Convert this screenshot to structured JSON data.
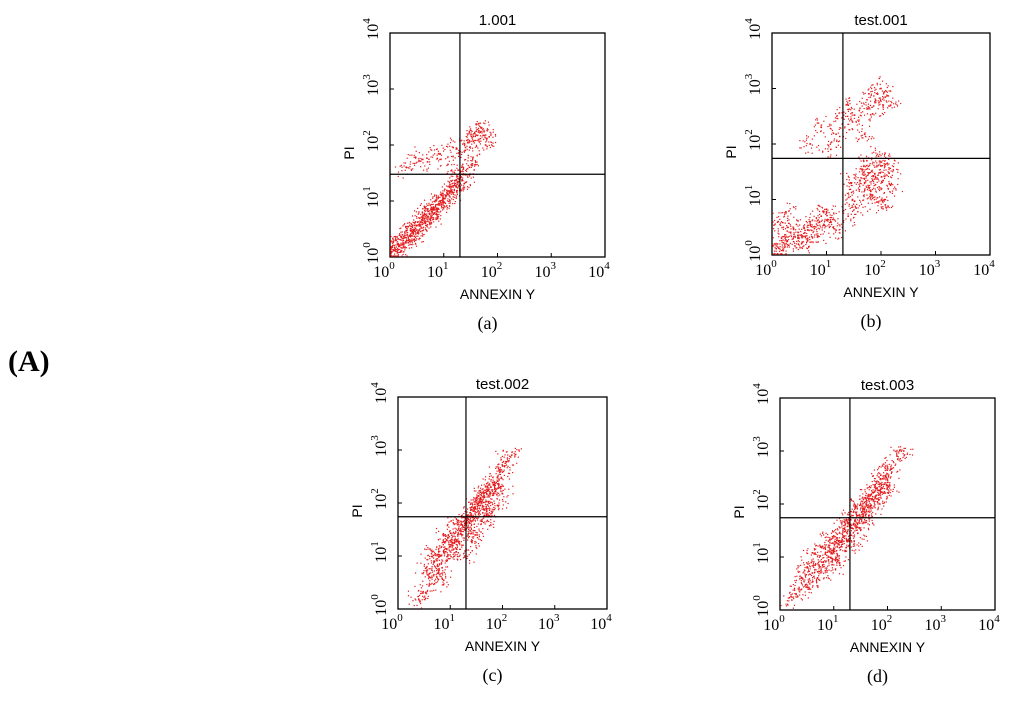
{
  "figure_label": "(A)",
  "colors": {
    "points": "#e41a1c",
    "frame": "#000000",
    "background": "#ffffff"
  },
  "chart_data": [
    {
      "type": "scatter",
      "title": "1.001",
      "caption": "(a)",
      "xlabel": "ANNEXIN Y",
      "ylabel": "PI",
      "x_scale": "log",
      "y_scale": "log",
      "xlim": [
        1,
        10000
      ],
      "ylim": [
        1,
        10000
      ],
      "tick_labels": [
        "10^0",
        "10^1",
        "10^2",
        "10^3",
        "10^4"
      ],
      "quadrant_gate": {
        "x": 20,
        "y": 30
      },
      "grid": false,
      "legend": "none",
      "series": [
        {
          "values": [
            [
              1.2,
              1.3
            ],
            [
              1.5,
              1.6
            ],
            [
              1.8,
              1.7
            ],
            [
              2.0,
              2.2
            ],
            [
              2.5,
              2.4
            ],
            [
              3.0,
              3.2
            ],
            [
              3.5,
              3.6
            ],
            [
              4.0,
              4.5
            ],
            [
              5.0,
              5.2
            ],
            [
              6.0,
              6.5
            ],
            [
              7.0,
              7.8
            ],
            [
              8.0,
              9.0
            ],
            [
              10,
              11
            ],
            [
              12,
              13
            ],
            [
              14,
              15
            ],
            [
              16,
              19
            ],
            [
              18,
              22
            ],
            [
              20,
              25
            ],
            [
              25,
              30
            ],
            [
              30,
              40
            ],
            [
              1.1,
              1.5
            ],
            [
              1.4,
              1.2
            ],
            [
              2.2,
              1.8
            ],
            [
              2.8,
              3.0
            ],
            [
              3.3,
              2.8
            ],
            [
              4.5,
              4.0
            ],
            [
              5.5,
              6.0
            ],
            [
              6.5,
              5.8
            ],
            [
              9.0,
              8.5
            ],
            [
              11,
              12
            ],
            [
              1.3,
              2.0
            ],
            [
              1.7,
              2.5
            ],
            [
              2.4,
              3.0
            ],
            [
              3.8,
              4.2
            ],
            [
              4.2,
              5.5
            ],
            [
              6.0,
              7.0
            ],
            [
              8.5,
              10
            ],
            [
              13,
              14
            ],
            [
              17,
              18
            ],
            [
              22,
              24
            ],
            [
              2.0,
              40
            ],
            [
              3.0,
              60
            ],
            [
              5.0,
              50
            ],
            [
              8.0,
              70
            ],
            [
              12,
              45
            ],
            [
              15,
              90
            ],
            [
              25,
              80
            ],
            [
              30,
              120
            ],
            [
              40,
              150
            ],
            [
              50,
              200
            ],
            [
              60,
              100
            ],
            [
              35,
              60
            ],
            [
              45,
              180
            ],
            [
              28,
              110
            ],
            [
              70,
              140
            ]
          ]
        }
      ]
    },
    {
      "type": "scatter",
      "title": "test.001",
      "caption": "(b)",
      "xlabel": "ANNEXIN Y",
      "ylabel": "PI",
      "x_scale": "log",
      "y_scale": "log",
      "xlim": [
        1,
        10000
      ],
      "ylim": [
        1,
        10000
      ],
      "tick_labels": [
        "10^0",
        "10^1",
        "10^2",
        "10^3",
        "10^4"
      ],
      "quadrant_gate": {
        "x": 20,
        "y": 55
      },
      "grid": false,
      "legend": "none",
      "series": [
        {
          "values": [
            [
              1.2,
              1.3
            ],
            [
              1.5,
              2.0
            ],
            [
              2.0,
              1.5
            ],
            [
              2.5,
              3.0
            ],
            [
              3.0,
              2.0
            ],
            [
              4.0,
              2.5
            ],
            [
              5.0,
              4.0
            ],
            [
              6.0,
              3.0
            ],
            [
              8.0,
              5.0
            ],
            [
              10,
              6.0
            ],
            [
              1.3,
              4.0
            ],
            [
              1.8,
              6.0
            ],
            [
              2.2,
              2.5
            ],
            [
              3.5,
              1.6
            ],
            [
              4.5,
              1.8
            ],
            [
              7.0,
              2.2
            ],
            [
              9.0,
              3.5
            ],
            [
              12,
              4.0
            ],
            [
              15,
              2.8
            ],
            [
              1.6,
              1.2
            ],
            [
              25,
              5.0
            ],
            [
              30,
              10
            ],
            [
              40,
              15
            ],
            [
              50,
              20
            ],
            [
              60,
              30
            ],
            [
              70,
              12
            ],
            [
              80,
              25
            ],
            [
              100,
              40
            ],
            [
              120,
              8.0
            ],
            [
              150,
              18
            ],
            [
              35,
              7.0
            ],
            [
              45,
              35
            ],
            [
              55,
              50
            ],
            [
              90,
              60
            ],
            [
              110,
              22
            ],
            [
              130,
              45
            ],
            [
              65,
              14
            ],
            [
              85,
              9.0
            ],
            [
              140,
              30
            ],
            [
              28,
              20
            ],
            [
              5.0,
              100
            ],
            [
              8.0,
              200
            ],
            [
              15,
              150
            ],
            [
              20,
              300
            ],
            [
              25,
              500
            ],
            [
              40,
              400
            ],
            [
              60,
              800
            ],
            [
              80,
              600
            ],
            [
              100,
              1000
            ],
            [
              150,
              500
            ],
            [
              30,
              250
            ],
            [
              50,
              150
            ],
            [
              70,
              350
            ],
            [
              120,
              700
            ],
            [
              12,
              80
            ]
          ]
        }
      ]
    },
    {
      "type": "scatter",
      "title": "test.002",
      "caption": "(c)",
      "xlabel": "ANNEXIN Y",
      "ylabel": "PI",
      "x_scale": "log",
      "y_scale": "log",
      "xlim": [
        1,
        10000
      ],
      "ylim": [
        1,
        10000
      ],
      "tick_labels": [
        "10^0",
        "10^1",
        "10^2",
        "10^3",
        "10^4"
      ],
      "quadrant_gate": {
        "x": 20,
        "y": 55
      },
      "grid": false,
      "legend": "none",
      "series": [
        {
          "values": [
            [
              3.0,
              2.0
            ],
            [
              4.0,
              4.0
            ],
            [
              5.0,
              8.0
            ],
            [
              6.0,
              5.0
            ],
            [
              8.0,
              12
            ],
            [
              10,
              15
            ],
            [
              12,
              20
            ],
            [
              15,
              30
            ],
            [
              20,
              40
            ],
            [
              25,
              60
            ],
            [
              30,
              80
            ],
            [
              40,
              100
            ],
            [
              50,
              150
            ],
            [
              60,
              200
            ],
            [
              80,
              300
            ],
            [
              100,
              500
            ],
            [
              5.0,
              3.0
            ],
            [
              7.0,
              6.0
            ],
            [
              9.0,
              10
            ],
            [
              11,
              18
            ],
            [
              14,
              25
            ],
            [
              18,
              35
            ],
            [
              22,
              50
            ],
            [
              28,
              70
            ],
            [
              35,
              90
            ],
            [
              45,
              130
            ],
            [
              55,
              180
            ],
            [
              70,
              250
            ],
            [
              90,
              400
            ],
            [
              120,
              600
            ],
            [
              3.5,
              6.0
            ],
            [
              6.5,
              10
            ],
            [
              8.5,
              20
            ],
            [
              13,
              12
            ],
            [
              16,
              45
            ],
            [
              24,
              30
            ],
            [
              32,
              110
            ],
            [
              42,
              65
            ],
            [
              65,
              140
            ],
            [
              85,
              220
            ],
            [
              20,
              10
            ],
            [
              30,
              25
            ],
            [
              40,
              45
            ],
            [
              50,
              70
            ],
            [
              60,
              55
            ],
            [
              80,
              90
            ],
            [
              100,
              150
            ],
            [
              12,
              40
            ],
            [
              8.0,
              25
            ],
            [
              150,
              800
            ],
            [
              2.5,
              1.5
            ],
            [
              4.5,
              12
            ],
            [
              7.5,
              3.5
            ],
            [
              26,
              18
            ],
            [
              38,
              160
            ]
          ]
        }
      ]
    },
    {
      "type": "scatter",
      "title": "test.003",
      "caption": "(d)",
      "xlabel": "ANNEXIN Y",
      "ylabel": "PI",
      "x_scale": "log",
      "y_scale": "log",
      "xlim": [
        1,
        10000
      ],
      "ylim": [
        1,
        10000
      ],
      "tick_labels": [
        "10^0",
        "10^1",
        "10^2",
        "10^3",
        "10^4"
      ],
      "quadrant_gate": {
        "x": 20,
        "y": 55
      },
      "grid": false,
      "legend": "none",
      "series": [
        {
          "values": [
            [
              2.0,
              2.0
            ],
            [
              3.0,
              3.0
            ],
            [
              4.0,
              5.0
            ],
            [
              5.0,
              4.0
            ],
            [
              6.0,
              8.0
            ],
            [
              8.0,
              10
            ],
            [
              10,
              14
            ],
            [
              12,
              18
            ],
            [
              15,
              25
            ],
            [
              18,
              30
            ],
            [
              20,
              40
            ],
            [
              25,
              50
            ],
            [
              30,
              60
            ],
            [
              35,
              80
            ],
            [
              40,
              100
            ],
            [
              50,
              150
            ],
            [
              60,
              200
            ],
            [
              80,
              300
            ],
            [
              100,
              500
            ],
            [
              150,
              800
            ],
            [
              2.5,
              4.0
            ],
            [
              3.5,
              2.5
            ],
            [
              4.5,
              7.0
            ],
            [
              7.0,
              5.5
            ],
            [
              9.0,
              12
            ],
            [
              11,
              9.0
            ],
            [
              14,
              20
            ],
            [
              17,
              15
            ],
            [
              22,
              35
            ],
            [
              28,
              28
            ],
            [
              33,
              70
            ],
            [
              45,
              60
            ],
            [
              55,
              120
            ],
            [
              70,
              180
            ],
            [
              90,
              250
            ],
            [
              120,
              400
            ],
            [
              200,
              1000
            ],
            [
              4.0,
              12
            ],
            [
              6.0,
              15
            ],
            [
              10,
              25
            ],
            [
              16,
              45
            ],
            [
              24,
              20
            ],
            [
              36,
              45
            ],
            [
              48,
              90
            ],
            [
              65,
              110
            ],
            [
              85,
              160
            ],
            [
              110,
              220
            ],
            [
              1.6,
              1.8
            ],
            [
              3.2,
              6.5
            ],
            [
              8.0,
              20
            ],
            [
              13,
              7.0
            ],
            [
              19,
              55
            ],
            [
              26,
              90
            ],
            [
              42,
              130
            ],
            [
              75,
              350
            ]
          ]
        }
      ]
    }
  ]
}
